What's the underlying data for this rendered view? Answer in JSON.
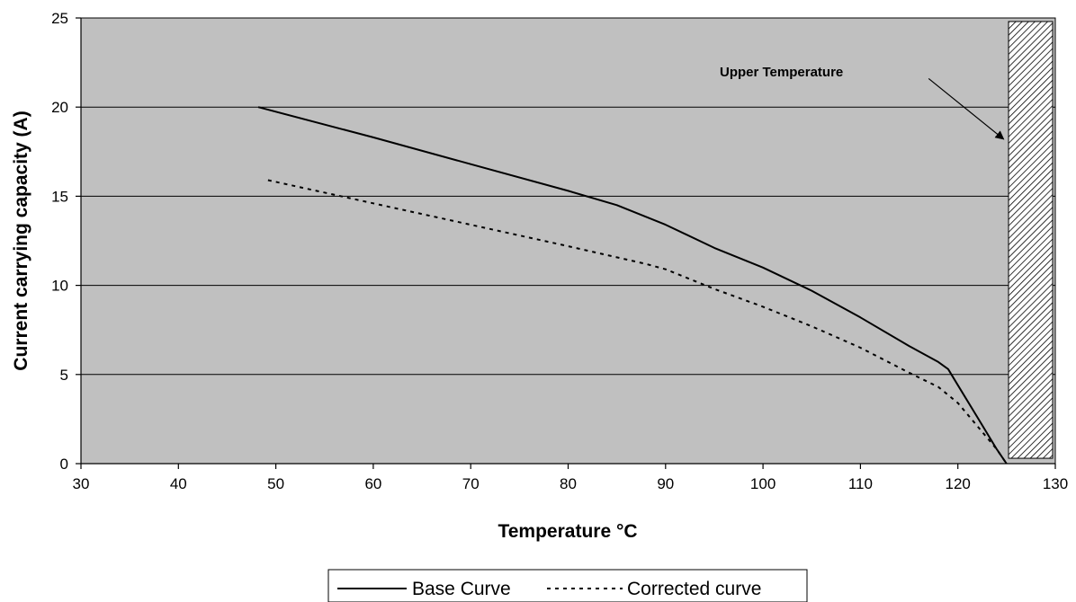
{
  "chart_data": {
    "type": "line",
    "title": "",
    "xlabel": "Temperature °C",
    "ylabel": "Current carrying capacity (A)",
    "xlim": [
      30,
      130
    ],
    "ylim": [
      0,
      25
    ],
    "x_ticks": [
      30,
      40,
      50,
      60,
      70,
      80,
      90,
      100,
      110,
      120,
      130
    ],
    "y_ticks": [
      0,
      5,
      10,
      15,
      20,
      25
    ],
    "grid": "horizontal",
    "plot_background": "#c0c0c0",
    "legend_position": "bottom",
    "series": [
      {
        "name": "Base Curve",
        "style": "solid",
        "color": "#000000",
        "points": [
          [
            48.2,
            20.0
          ],
          [
            60,
            18.3
          ],
          [
            70,
            16.8
          ],
          [
            80,
            15.3
          ],
          [
            85,
            14.5
          ],
          [
            90,
            13.4
          ],
          [
            95,
            12.1
          ],
          [
            100,
            11.0
          ],
          [
            105,
            9.7
          ],
          [
            110,
            8.2
          ],
          [
            115,
            6.6
          ],
          [
            118,
            5.7
          ],
          [
            119,
            5.3
          ],
          [
            120,
            4.4
          ],
          [
            122,
            2.6
          ],
          [
            124,
            0.8
          ],
          [
            125,
            0.0
          ]
        ]
      },
      {
        "name": "Corrected curve",
        "style": "dashed",
        "color": "#000000",
        "points": [
          [
            49.2,
            15.9
          ],
          [
            60,
            14.6
          ],
          [
            70,
            13.4
          ],
          [
            80,
            12.2
          ],
          [
            88,
            11.2
          ],
          [
            90,
            10.9
          ],
          [
            95,
            9.8
          ],
          [
            100,
            8.8
          ],
          [
            105,
            7.7
          ],
          [
            110,
            6.5
          ],
          [
            115,
            5.1
          ],
          [
            118,
            4.3
          ],
          [
            120,
            3.4
          ],
          [
            122,
            2.1
          ],
          [
            124,
            0.8
          ],
          [
            125,
            0.0
          ]
        ]
      }
    ],
    "annotations": [
      {
        "text": "Upper Temperature",
        "x_start": 125.2,
        "x_end": 130,
        "y_start": 0.3,
        "y_end": 24.8,
        "fill_pattern": "diagonal-hatch",
        "arrow": {
          "from": [
            117,
            21.6
          ],
          "to": [
            124.7,
            18.2
          ]
        }
      }
    ]
  },
  "colors": {
    "plot_background": "#c0c0c0",
    "gridline": "#000000",
    "line": "#000000"
  }
}
